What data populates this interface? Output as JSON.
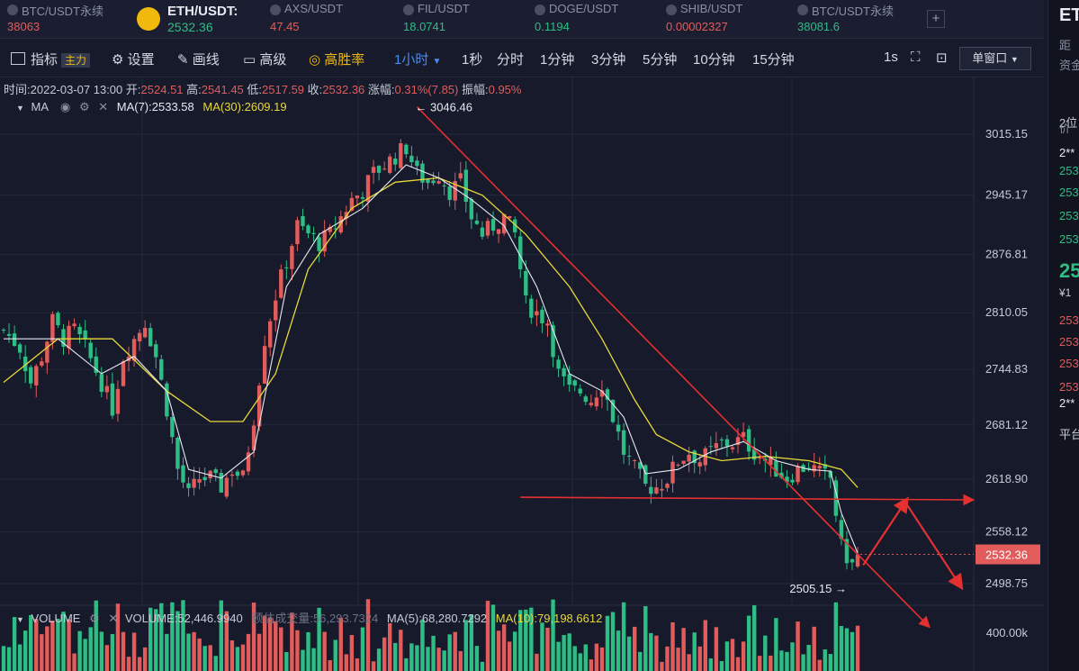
{
  "tickers": [
    {
      "name": "BTC/USDT永续",
      "price": "38063",
      "price_color": "red",
      "icon": "btc-icon"
    },
    {
      "name": "ETH/USDT:",
      "price": "2532.36",
      "price_color": "green",
      "icon": "eth-icon",
      "active": true
    },
    {
      "name": "AXS/USDT",
      "price": "47.45",
      "price_color": "red",
      "icon": "axs-icon"
    },
    {
      "name": "FIL/USDT",
      "price": "18.0741",
      "price_color": "green",
      "icon": "fil-icon"
    },
    {
      "name": "DOGE/USDT",
      "price": "0.1194",
      "price_color": "green",
      "icon": "doge-icon"
    },
    {
      "name": "SHIB/USDT",
      "price": "0.00002327",
      "price_color": "red",
      "icon": "shib-icon"
    },
    {
      "name": "BTC/USDT永续",
      "price": "38081.6",
      "price_color": "green",
      "icon": "btc-icon"
    }
  ],
  "toolbar": {
    "indicator": "指标",
    "main_badge": "主力",
    "settings": "设置",
    "draw": "画线",
    "advanced": "高级",
    "winrate": "高胜率",
    "intervals": [
      "1小时",
      "1秒",
      "分时",
      "1分钟",
      "3分钟",
      "5分钟",
      "10分钟",
      "15分钟"
    ],
    "active_interval": "1小时",
    "right_interval": "1s",
    "window_mode": "单窗口"
  },
  "info": {
    "time_label": "时间:",
    "time": "2022-03-07 13:00",
    "open_label": "开:",
    "open": "2524.51",
    "high_label": "高:",
    "high": "2541.45",
    "low_label": "低:",
    "low": "2517.59",
    "close_label": "收:",
    "close": "2532.36",
    "change_label": "涨幅:",
    "change": "0.31%(7.85)",
    "amp_label": "振幅:",
    "amp": "0.95%"
  },
  "ma_legend": {
    "name": "MA",
    "ma7": "MA(7):2533.58",
    "ma30": "MA(30):2609.19"
  },
  "volume_legend": {
    "name": "VOLUME",
    "vol": "VOLUME:52,446.9940",
    "est": "预估成交量:56,293.7324",
    "ma5": "MA(5):68,280.7292",
    "ma10": "MA(10):79,198.6612"
  },
  "right_panel": {
    "texts": [
      "ET",
      "距",
      "资金",
      "2位",
      "价",
      "2**",
      "253",
      "253",
      "253",
      "253",
      "25",
      "¥1",
      "253",
      "253",
      "253",
      "253",
      "2**",
      "平台"
    ]
  },
  "colors": {
    "up": "#e25c5c",
    "down": "#2ebd85",
    "ma7": "#e8e8f0",
    "ma30": "#e8d83a",
    "trend": "#e53030",
    "bg": "#161a2b"
  },
  "chart_data": {
    "type": "candlestick",
    "interval": "1小时",
    "y_axis_ticks": [
      3015.15,
      2945.17,
      2876.81,
      2810.05,
      2744.83,
      2681.12,
      2618.9,
      2558.12,
      2498.75
    ],
    "y_tick_labels": [
      "3015.15",
      "2945.17",
      "2876.81",
      "2810.05",
      "2744.83",
      "2681.12",
      "2618.90",
      "2558.12",
      "2498.75"
    ],
    "ylim": [
      2470,
      3080
    ],
    "volume_tick_label": "400.00k",
    "high_marker": {
      "label": "← 3046.46",
      "value": 3046.46
    },
    "low_marker": {
      "label": "2505.15 →",
      "value": 2505.15
    },
    "last_price_label": "2532.36",
    "last_price": 2532.36,
    "close_path": [
      [
        0,
        2790
      ],
      [
        3,
        2770
      ],
      [
        5,
        2730
      ],
      [
        7,
        2760
      ],
      [
        9,
        2800
      ],
      [
        11,
        2780
      ],
      [
        13,
        2790
      ],
      [
        15,
        2770
      ],
      [
        18,
        2730
      ],
      [
        20,
        2700
      ],
      [
        22,
        2760
      ],
      [
        24,
        2780
      ],
      [
        26,
        2800
      ],
      [
        28,
        2760
      ],
      [
        30,
        2700
      ],
      [
        32,
        2630
      ],
      [
        34,
        2600
      ],
      [
        36,
        2620
      ],
      [
        38,
        2620
      ],
      [
        40,
        2610
      ],
      [
        42,
        2630
      ],
      [
        44,
        2620
      ],
      [
        46,
        2690
      ],
      [
        48,
        2780
      ],
      [
        50,
        2830
      ],
      [
        52,
        2870
      ],
      [
        54,
        2910
      ],
      [
        56,
        2900
      ],
      [
        58,
        2890
      ],
      [
        60,
        2900
      ],
      [
        62,
        2920
      ],
      [
        64,
        2940
      ],
      [
        66,
        2950
      ],
      [
        68,
        2970
      ],
      [
        70,
        2980
      ],
      [
        72,
        2990
      ],
      [
        74,
        3000
      ],
      [
        76,
        2970
      ],
      [
        78,
        2960
      ],
      [
        80,
        2970
      ],
      [
        82,
        2950
      ],
      [
        84,
        2960
      ],
      [
        86,
        2920
      ],
      [
        88,
        2900
      ],
      [
        90,
        2910
      ],
      [
        92,
        2920
      ],
      [
        94,
        2900
      ],
      [
        96,
        2820
      ],
      [
        98,
        2810
      ],
      [
        100,
        2800
      ],
      [
        102,
        2740
      ],
      [
        104,
        2720
      ],
      [
        106,
        2720
      ],
      [
        108,
        2710
      ],
      [
        110,
        2730
      ],
      [
        112,
        2690
      ],
      [
        114,
        2650
      ],
      [
        116,
        2630
      ],
      [
        118,
        2610
      ],
      [
        120,
        2610
      ],
      [
        122,
        2620
      ],
      [
        124,
        2640
      ],
      [
        126,
        2650
      ],
      [
        128,
        2640
      ],
      [
        130,
        2650
      ],
      [
        132,
        2660
      ],
      [
        134,
        2660
      ],
      [
        136,
        2665
      ],
      [
        138,
        2650
      ],
      [
        140,
        2640
      ],
      [
        142,
        2630
      ],
      [
        144,
        2620
      ],
      [
        146,
        2630
      ],
      [
        148,
        2635
      ],
      [
        150,
        2625
      ],
      [
        152,
        2620
      ],
      [
        154,
        2540
      ],
      [
        156,
        2520
      ],
      [
        157,
        2532.36
      ]
    ],
    "ma7_path": [
      [
        0,
        2780
      ],
      [
        10,
        2780
      ],
      [
        18,
        2740
      ],
      [
        24,
        2760
      ],
      [
        30,
        2720
      ],
      [
        34,
        2630
      ],
      [
        40,
        2620
      ],
      [
        46,
        2650
      ],
      [
        52,
        2840
      ],
      [
        58,
        2900
      ],
      [
        66,
        2930
      ],
      [
        74,
        2980
      ],
      [
        80,
        2965
      ],
      [
        86,
        2940
      ],
      [
        92,
        2910
      ],
      [
        98,
        2840
      ],
      [
        104,
        2740
      ],
      [
        110,
        2720
      ],
      [
        114,
        2690
      ],
      [
        118,
        2625
      ],
      [
        124,
        2630
      ],
      [
        130,
        2650
      ],
      [
        136,
        2662
      ],
      [
        142,
        2640
      ],
      [
        148,
        2630
      ],
      [
        152,
        2628
      ],
      [
        154,
        2580
      ],
      [
        157,
        2533.58
      ]
    ],
    "ma30_path": [
      [
        0,
        2730
      ],
      [
        10,
        2780
      ],
      [
        20,
        2780
      ],
      [
        30,
        2720
      ],
      [
        38,
        2685
      ],
      [
        44,
        2685
      ],
      [
        50,
        2740
      ],
      [
        56,
        2860
      ],
      [
        64,
        2930
      ],
      [
        72,
        2960
      ],
      [
        80,
        2965
      ],
      [
        88,
        2945
      ],
      [
        96,
        2900
      ],
      [
        104,
        2840
      ],
      [
        110,
        2780
      ],
      [
        116,
        2710
      ],
      [
        120,
        2670
      ],
      [
        126,
        2650
      ],
      [
        132,
        2640
      ],
      [
        140,
        2645
      ],
      [
        148,
        2640
      ],
      [
        154,
        2630
      ],
      [
        157,
        2609.19
      ]
    ],
    "trend_lines": [
      {
        "from": [
          76,
          3046.46
        ],
        "to": [
          170,
          2450
        ]
      },
      {
        "from": [
          95,
          2598
        ],
        "to": [
          178,
          2595
        ]
      }
    ],
    "annotation_arrows": [
      {
        "from": [
          158,
          2520
        ],
        "to": [
          166,
          2595
        ]
      },
      {
        "from": [
          166,
          2590
        ],
        "to": [
          176,
          2495
        ]
      }
    ]
  }
}
